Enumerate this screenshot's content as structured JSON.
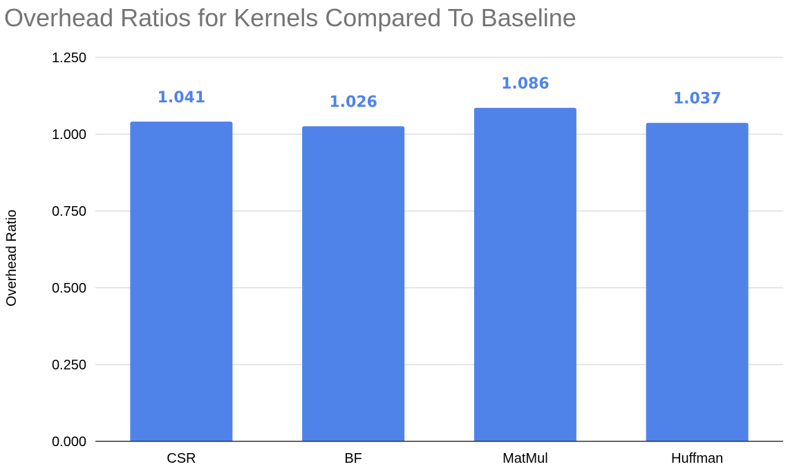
{
  "chart_data": {
    "type": "bar",
    "title": "Overhead Ratios for Kernels Compared To Baseline",
    "xlabel": "",
    "ylabel": "Overhead Ratio",
    "categories": [
      "CSR",
      "BF",
      "MatMul",
      "Huffman"
    ],
    "values": [
      1.041,
      1.026,
      1.086,
      1.037
    ],
    "data_labels": [
      "1.041",
      "1.026",
      "1.086",
      "1.037"
    ],
    "ylim": [
      0,
      1.25
    ],
    "yticks": [
      0,
      0.25,
      0.5,
      0.75,
      1.0,
      1.25
    ],
    "ytick_labels": [
      "0.000",
      "0.250",
      "0.500",
      "0.750",
      "1.000",
      "1.250"
    ],
    "grid": true,
    "legend": "none",
    "colors": {
      "bar": "#5083ea",
      "data_label": "#5083ea",
      "title": "#757575",
      "grid": "#cccccc",
      "baseline": "#333333"
    }
  }
}
